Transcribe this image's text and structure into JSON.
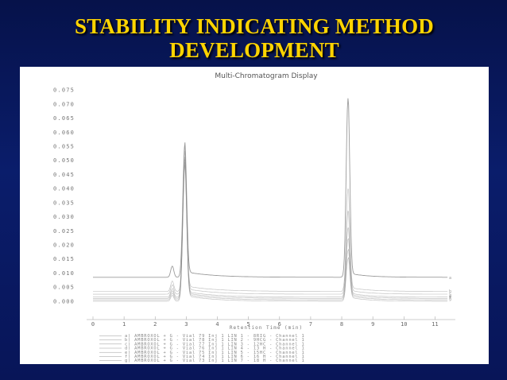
{
  "slide": {
    "title_line1": "STABILITY INDICATING METHOD",
    "title_line2": "DEVELOPMENT"
  },
  "colors": {
    "background": "#0a1d6b",
    "title": "#ffd400",
    "panel": "#ffffff",
    "trace": "#8a8a8a"
  },
  "chart_data": {
    "type": "line",
    "title": "Multi-Chromatogram Display",
    "xlabel": "Retention Time (min)",
    "ylabel": "",
    "xlim": [
      0,
      11.5
    ],
    "ylim": [
      -0.002,
      0.077
    ],
    "x_ticks": [
      "0",
      "1",
      "2",
      "3",
      "4",
      "5",
      "6",
      "7",
      "8",
      "9",
      "10",
      "11"
    ],
    "y_ticks": [
      "0.000",
      "0.005",
      "0.010",
      "0.015",
      "0.020",
      "0.025",
      "0.030",
      "0.035",
      "0.040",
      "0.045",
      "0.050",
      "0.055",
      "0.060",
      "0.065",
      "0.070",
      "0.075"
    ],
    "series": [
      {
        "name": "a)",
        "baseline": 0.0085,
        "peak1": 0.055,
        "peak2": 0.072
      },
      {
        "name": "b)",
        "baseline": 0.0035,
        "peak1": 0.054,
        "peak2": 0.04
      },
      {
        "name": "c)",
        "baseline": 0.0025,
        "peak1": 0.052,
        "peak2": 0.032
      },
      {
        "name": "d)",
        "baseline": 0.0015,
        "peak1": 0.05,
        "peak2": 0.026
      },
      {
        "name": "e)",
        "baseline": 0.001,
        "peak1": 0.049,
        "peak2": 0.022
      },
      {
        "name": "f)",
        "baseline": 0.0005,
        "peak1": 0.048,
        "peak2": 0.018
      },
      {
        "name": "g)",
        "baseline": 0.0,
        "peak1": 0.047,
        "peak2": 0.015
      }
    ],
    "peak_positions": [
      2.95,
      8.2
    ],
    "legend": [
      "a) AMBROXOL + G - Vial 79 Inj 1 LIN 1 - 8RIG - Channel 1",
      "b) AMBROXOL + G - Vial 78 Inj 1 LIN 2 - 9HCG - Channel 1",
      "c) AMBROXOL + G - Vial 77 Inj 1 LIN 3 - 12HC - Channel 1",
      "d) AMBROXOL + G - Vial 76 Inj 1 LIN 4 - 13 H - Channel 1",
      "e) AMBROXOL + G - Vial 75 Inj 1 LIN 5 - 15HC - Channel 1",
      "f) AMBROXOL + G - Vial 74 Inj 1 LIN 6 - 16 H - Channel 1",
      "g) AMBROXOL + G - Vial 73 Inj 1 LIN 7 - 18 H - Channel 1"
    ],
    "grid": false,
    "legend_position": "bottom"
  }
}
